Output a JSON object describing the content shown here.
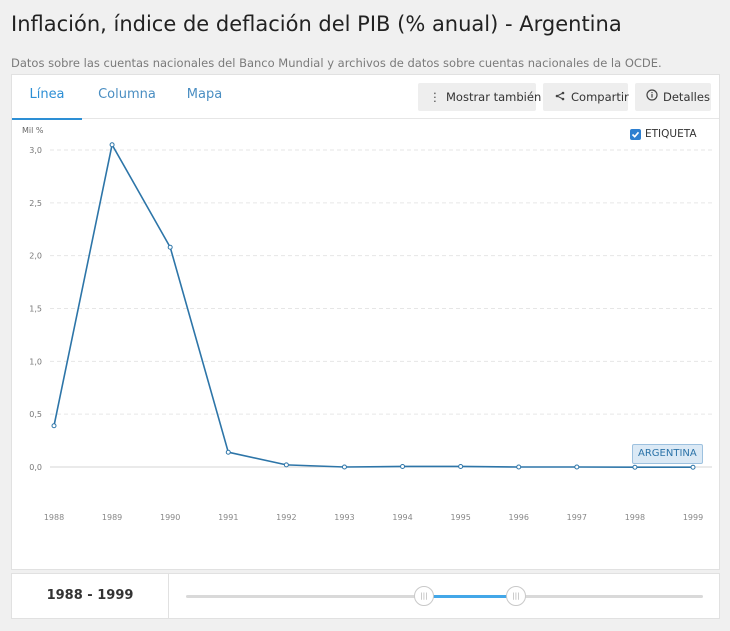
{
  "page": {
    "title": "Inflación, índice de deflación del PIB (% anual) - Argentina",
    "subtitle": "Datos sobre las cuentas nacionales del Banco Mundial y archivos de datos sobre cuentas nacionales de la OCDE."
  },
  "tabs": [
    {
      "label": "Línea",
      "active": true
    },
    {
      "label": "Columna",
      "active": false
    },
    {
      "label": "Mapa",
      "active": false
    }
  ],
  "actions": {
    "show_also": {
      "label": "Mostrar también",
      "icon": "more-vertical-icon"
    },
    "share": {
      "label": "Compartir",
      "icon": "share-icon"
    },
    "details": {
      "label": "Detalles",
      "icon": "info-icon"
    }
  },
  "legend": {
    "label": "ETIQUETA",
    "checked": true
  },
  "series_tag": "ARGENTINA",
  "range": {
    "label": "1988 - 1999"
  },
  "colors": {
    "line": "#2d75a8",
    "accent": "#2d8fd5"
  },
  "chart_data": {
    "type": "line",
    "ylabel": "Mil %",
    "ylim": [
      0,
      3
    ],
    "yticks": [
      "0,0",
      "0,5",
      "1,0",
      "1,5",
      "2,0",
      "2,5",
      "3,0"
    ],
    "grid": true,
    "x": [
      "1988",
      "1989",
      "1990",
      "1991",
      "1992",
      "1993",
      "1994",
      "1995",
      "1996",
      "1997",
      "1998",
      "1999"
    ],
    "series": [
      {
        "name": "ARGENTINA",
        "values": [
          0.39,
          3.05,
          2.08,
          0.14,
          0.02,
          0.0,
          0.005,
          0.005,
          0.0,
          0.0,
          -0.002,
          -0.002
        ]
      }
    ]
  }
}
